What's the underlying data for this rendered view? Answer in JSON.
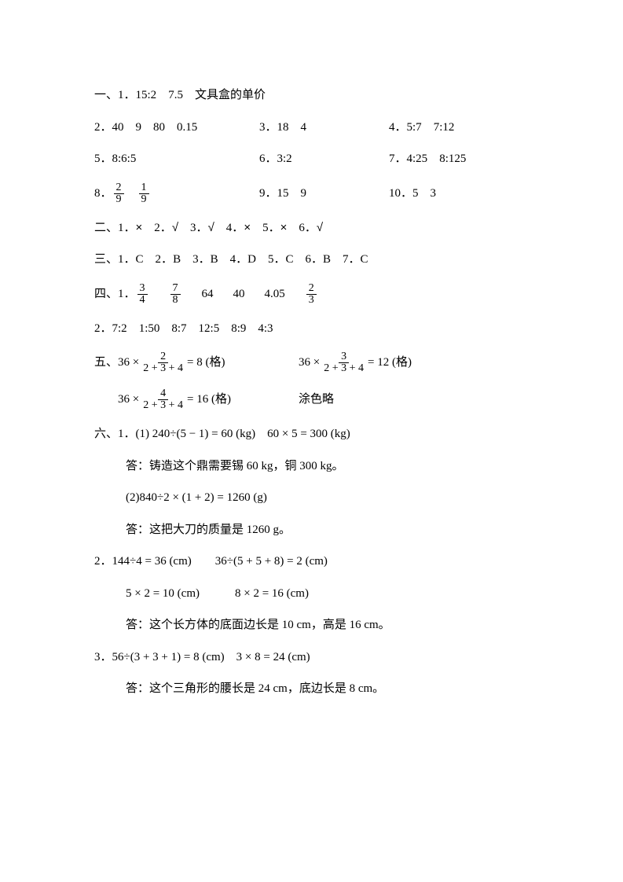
{
  "section1": {
    "line1": {
      "prefix": "一、1．",
      "a": "15:2",
      "b": "7.5",
      "c": "文具盒的单价"
    },
    "line2": {
      "prefix": "2．",
      "a": "40",
      "b": "9",
      "c": "80",
      "d": "0.15",
      "p3": "3．",
      "e": "18",
      "f": "4",
      "p4": "4．",
      "g": "5:7",
      "h": "7:12"
    },
    "line3": {
      "prefix": "5．",
      "a": "8:6:5",
      "p6": "6．",
      "b": "3:2",
      "p7": "7．",
      "c": "4:25",
      "d": "8:125"
    },
    "line4": {
      "prefix": "8．",
      "f1n": "2",
      "f1d": "9",
      "f2n": "1",
      "f2d": "9",
      "p9": "9．",
      "a": "15",
      "b": "9",
      "p10": "10．",
      "c": "5",
      "d": "3"
    }
  },
  "section2": {
    "prefix": "二、",
    "items": [
      {
        "num": "1．",
        "mark": "×"
      },
      {
        "num": "2．",
        "mark": "√"
      },
      {
        "num": "3．",
        "mark": "√"
      },
      {
        "num": "4．",
        "mark": "×"
      },
      {
        "num": "5．",
        "mark": "×"
      },
      {
        "num": "6．",
        "mark": "√"
      }
    ]
  },
  "section3": {
    "prefix": "三、",
    "items": [
      {
        "num": "1．",
        "ans": "C"
      },
      {
        "num": "2．",
        "ans": "B"
      },
      {
        "num": "3．",
        "ans": "B"
      },
      {
        "num": "4．",
        "ans": "D"
      },
      {
        "num": "5．",
        "ans": "C"
      },
      {
        "num": "6．",
        "ans": "B"
      },
      {
        "num": "7．",
        "ans": "C"
      }
    ]
  },
  "section4": {
    "line1": {
      "prefix": "四、1．",
      "f1n": "3",
      "f1d": "4",
      "f2n": "7",
      "f2d": "8",
      "a": "64",
      "b": "40",
      "c": "4.05",
      "f3n": "2",
      "f3d": "3"
    },
    "line2": {
      "prefix": "2．",
      "a": "7:2",
      "b": "1:50",
      "c": "8:7",
      "d": "12:5",
      "e": "8:9",
      "f": "4:3"
    }
  },
  "section5": {
    "prefix": "五、",
    "eq1a": "36 ×",
    "eq1fn": "2",
    "eq1fd": "2 + 3 + 4",
    "eq1b": "= 8 (格)",
    "eq2a": "36 ×",
    "eq2fn": "3",
    "eq2fd": "2 + 3 + 4",
    "eq2b": "= 12 (格)",
    "eq3a": "36 ×",
    "eq3fn": "4",
    "eq3fd": "2 + 3 + 4",
    "eq3b": "= 16 (格)",
    "note": "涂色略"
  },
  "section6": {
    "line1": "六、1．(1) 240÷(5 − 1) = 60 (kg)　60 × 5 = 300 (kg)",
    "ans1": "答：铸造这个鼎需要锡 60 kg，铜 300 kg。",
    "line2": "(2)840÷2 × (1 + 2) = 1260 (g)",
    "ans2": "答：这把大刀的质量是 1260 g。",
    "line3": "2．144÷4 = 36 (cm)　　36÷(5 + 5 + 8) = 2 (cm)",
    "line4": "5 × 2 = 10 (cm)　　　8 × 2 = 16 (cm)",
    "ans3": "答：这个长方体的底面边长是 10 cm，高是 16 cm。",
    "line5": "3．56÷(3 + 3 + 1) = 8 (cm)　3 × 8 = 24 (cm)",
    "ans4": "答：这个三角形的腰长是 24 cm，底边长是 8 cm。"
  }
}
